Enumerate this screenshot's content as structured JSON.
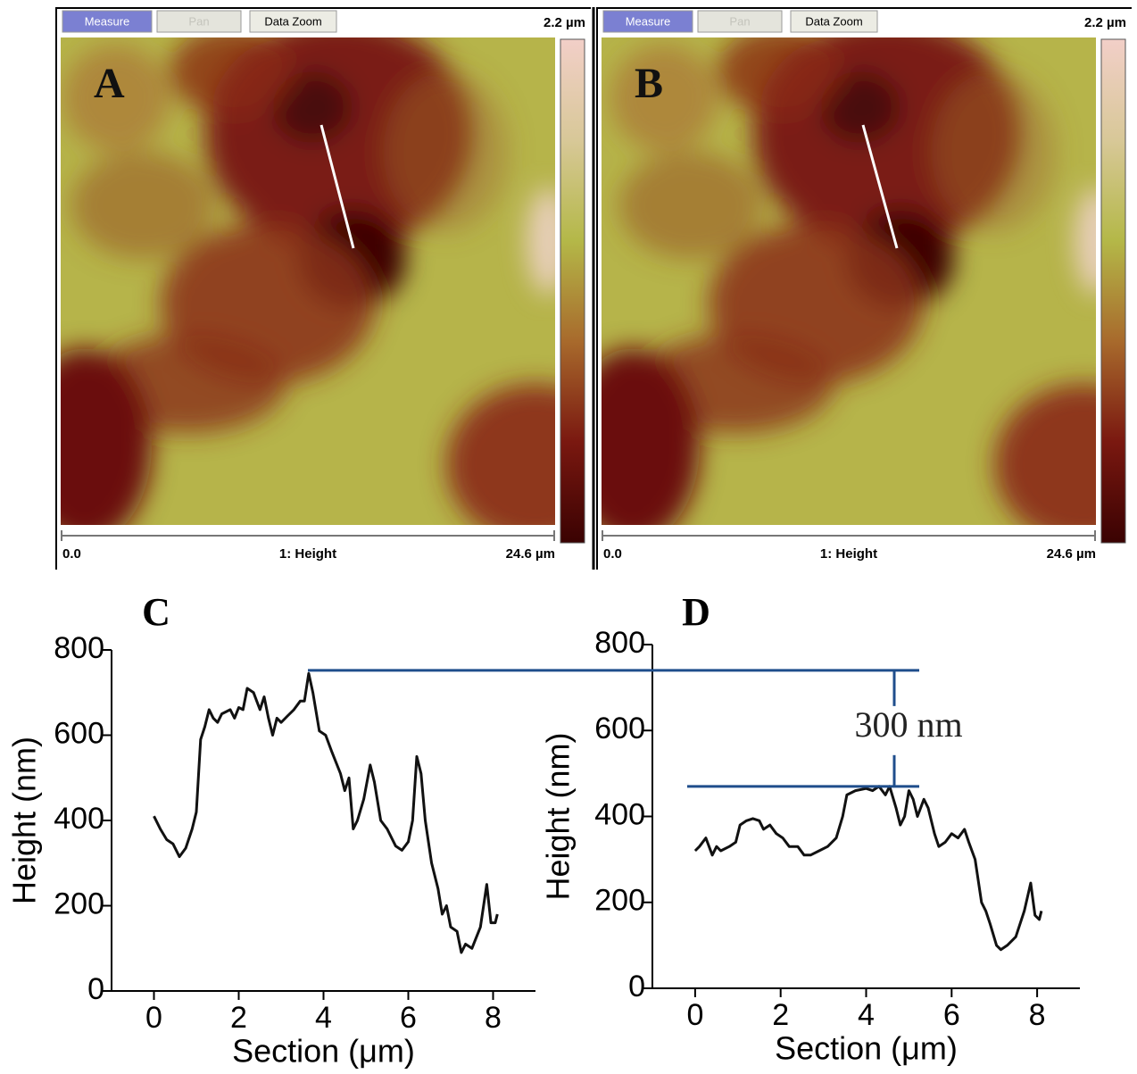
{
  "panels": [
    {
      "letter": "A",
      "buttons": [
        "Measure",
        "Pan",
        "Data Zoom"
      ],
      "z_range": "2.2 µm",
      "x_start": "0.0",
      "channel": "1: Height",
      "x_end": "24.6 µm"
    },
    {
      "letter": "B",
      "buttons": [
        "Measure",
        "Pan",
        "Data Zoom"
      ],
      "z_range": "2.2 µm",
      "x_start": "0.0",
      "channel": "1: Height",
      "x_end": "24.6 µm"
    }
  ],
  "chart_data": [
    {
      "type": "line",
      "title": "C",
      "xlabel": "Section (μm)",
      "ylabel": "Height (nm)",
      "xlim": [
        -1,
        9
      ],
      "xticks": [
        0,
        2,
        4,
        6,
        8
      ],
      "ylim": [
        0,
        800
      ],
      "yticks": [
        0,
        200,
        400,
        600,
        800
      ],
      "color": "#111111",
      "x": [
        0,
        0.15,
        0.3,
        0.45,
        0.6,
        0.75,
        0.9,
        1.0,
        1.1,
        1.2,
        1.3,
        1.4,
        1.5,
        1.6,
        1.8,
        1.9,
        2.0,
        2.1,
        2.2,
        2.35,
        2.5,
        2.6,
        2.7,
        2.8,
        2.9,
        3.0,
        3.15,
        3.3,
        3.45,
        3.55,
        3.65,
        3.75,
        3.9,
        4.05,
        4.2,
        4.4,
        4.5,
        4.6,
        4.7,
        4.8,
        4.95,
        5.1,
        5.2,
        5.35,
        5.5,
        5.7,
        5.85,
        6.0,
        6.1,
        6.2,
        6.3,
        6.4,
        6.55,
        6.7,
        6.8,
        6.9,
        7.0,
        7.15,
        7.25,
        7.35,
        7.5,
        7.7,
        7.85,
        7.95,
        8.05,
        8.1
      ],
      "values": [
        410,
        380,
        355,
        345,
        315,
        335,
        380,
        420,
        590,
        620,
        660,
        640,
        630,
        650,
        660,
        640,
        665,
        660,
        710,
        700,
        660,
        690,
        640,
        600,
        640,
        630,
        645,
        660,
        680,
        680,
        745,
        700,
        610,
        600,
        560,
        510,
        470,
        500,
        380,
        400,
        450,
        530,
        490,
        400,
        380,
        340,
        330,
        350,
        400,
        550,
        510,
        400,
        300,
        240,
        180,
        200,
        150,
        140,
        90,
        110,
        100,
        150,
        250,
        160,
        160,
        180
      ]
    },
    {
      "type": "line",
      "title": "D",
      "xlabel": "Section (μm)",
      "ylabel": "Height (nm)",
      "xlim": [
        -1,
        9
      ],
      "xticks": [
        0,
        2,
        4,
        6,
        8
      ],
      "ylim": [
        0,
        800
      ],
      "yticks": [
        0,
        200,
        400,
        600,
        800
      ],
      "color": "#111111",
      "x": [
        0,
        0.1,
        0.25,
        0.4,
        0.5,
        0.6,
        0.8,
        0.95,
        1.05,
        1.2,
        1.35,
        1.5,
        1.6,
        1.75,
        1.9,
        2.05,
        2.2,
        2.4,
        2.55,
        2.7,
        2.9,
        3.1,
        3.3,
        3.45,
        3.55,
        3.75,
        4.0,
        4.15,
        4.3,
        4.45,
        4.55,
        4.7,
        4.8,
        4.9,
        5.0,
        5.1,
        5.2,
        5.35,
        5.45,
        5.6,
        5.7,
        5.85,
        6.0,
        6.15,
        6.3,
        6.4,
        6.55,
        6.7,
        6.8,
        6.9,
        7.05,
        7.15,
        7.3,
        7.5,
        7.7,
        7.85,
        7.95,
        8.05,
        8.1
      ],
      "values": [
        320,
        330,
        350,
        310,
        330,
        320,
        330,
        340,
        380,
        390,
        395,
        390,
        370,
        380,
        360,
        350,
        330,
        330,
        310,
        310,
        320,
        330,
        350,
        400,
        450,
        460,
        465,
        460,
        470,
        450,
        470,
        420,
        380,
        400,
        460,
        440,
        400,
        440,
        420,
        360,
        330,
        340,
        360,
        350,
        370,
        340,
        300,
        200,
        180,
        150,
        100,
        90,
        100,
        120,
        180,
        245,
        170,
        160,
        180
      ],
      "annotation": {
        "text": "300 nm",
        "upper": 740,
        "lower": 470,
        "color": "#1f4e8c"
      }
    }
  ]
}
